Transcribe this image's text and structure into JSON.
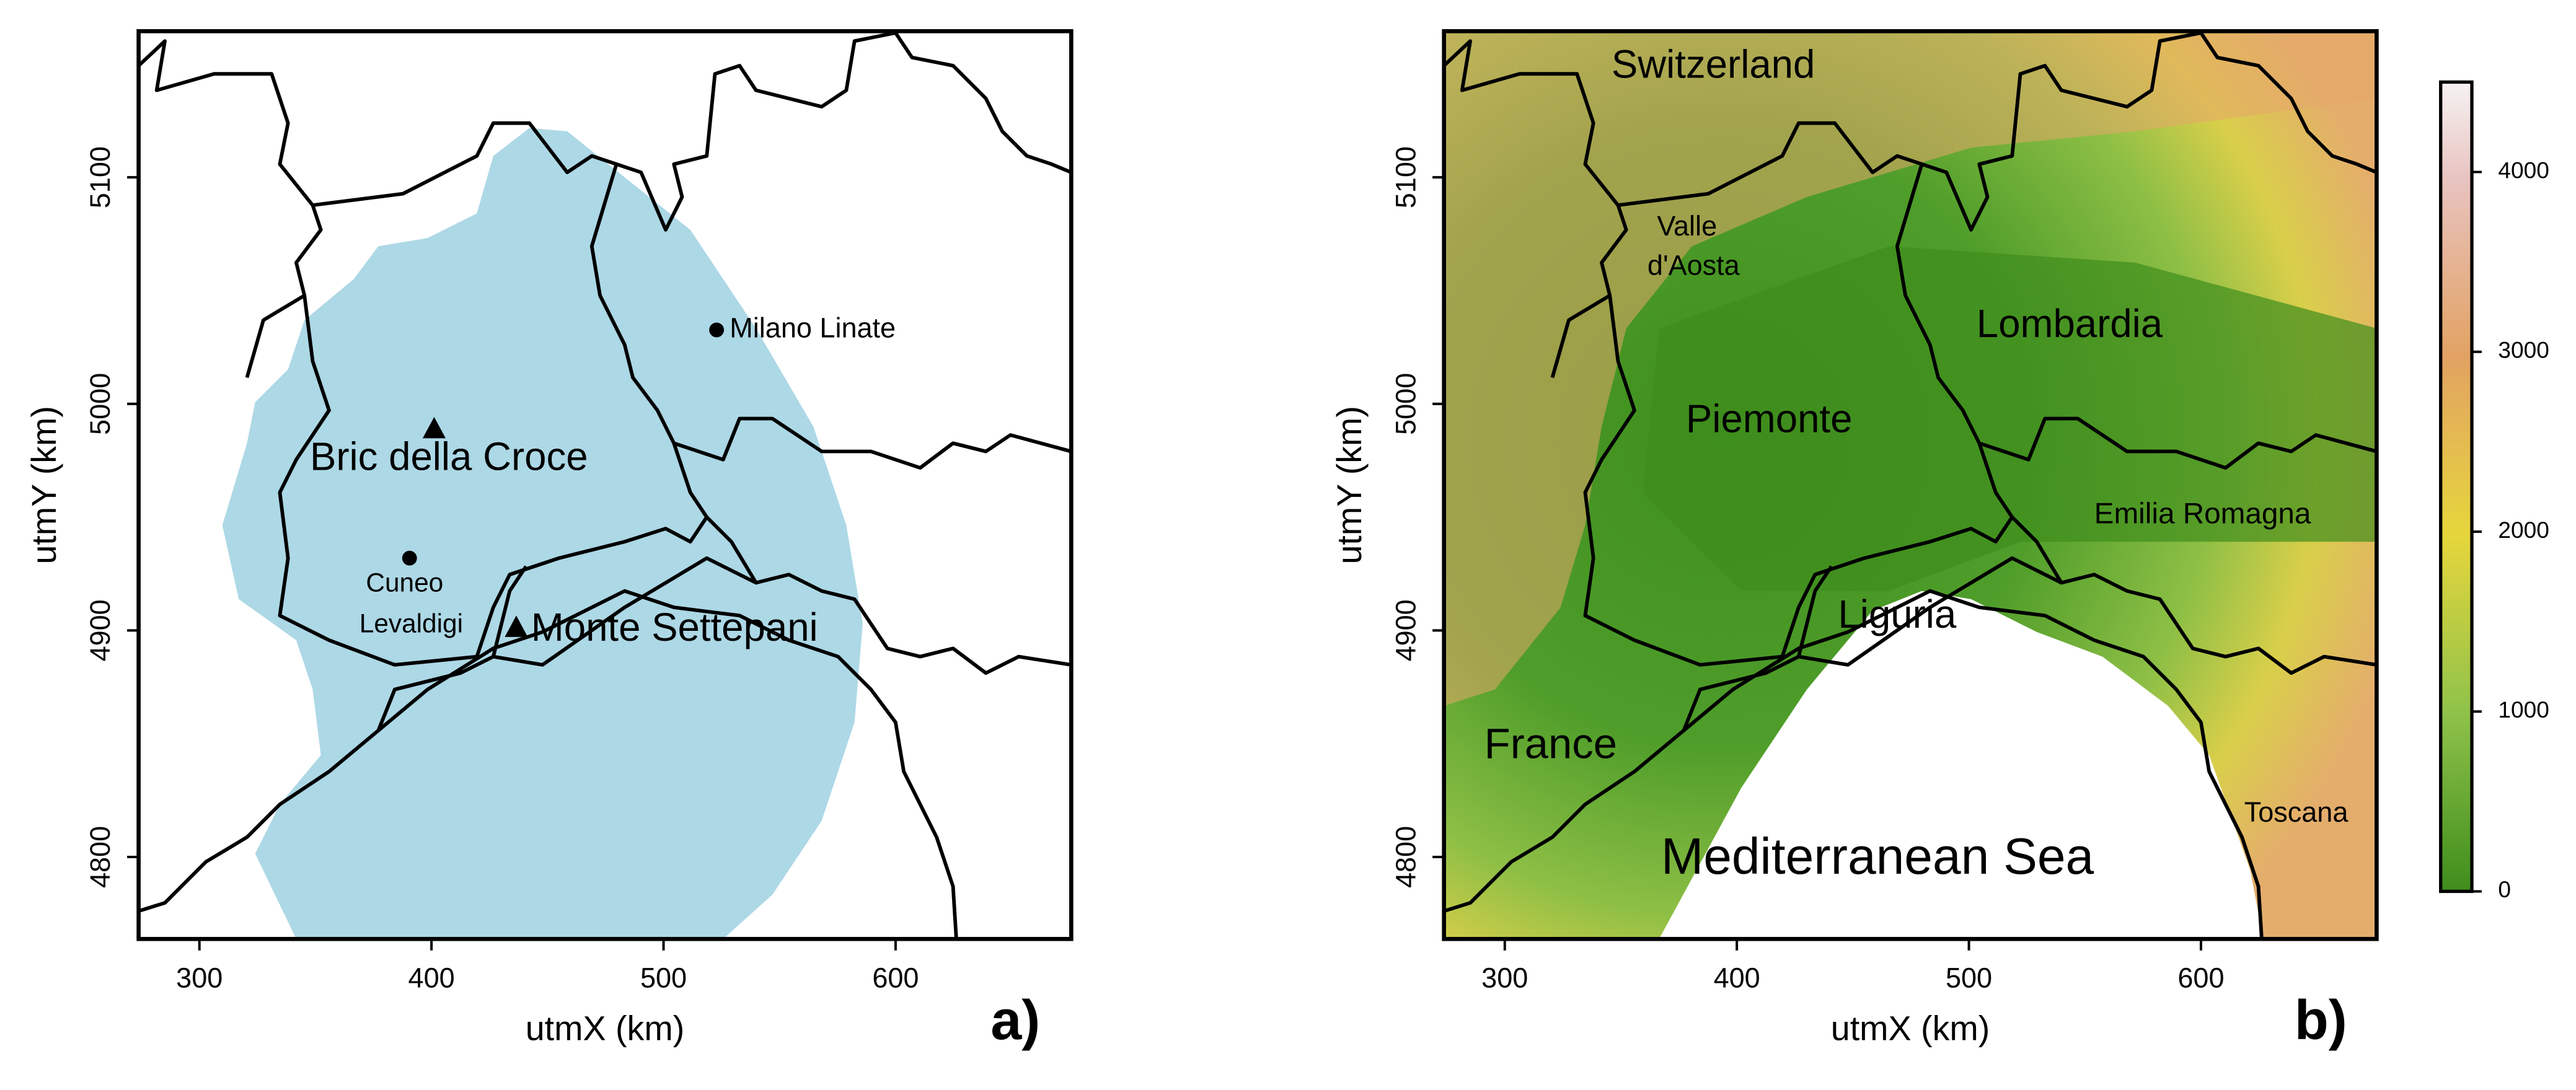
{
  "panels": [
    {
      "tag": "a)",
      "x_label": "utmX (km)",
      "y_label": "utmY (km)",
      "xlim": [
        273.8,
        675.7
      ],
      "ylim": [
        4763.8,
        5164.5
      ],
      "xticks": [
        300,
        400,
        500,
        600
      ],
      "yticks": [
        4800,
        4900,
        5000,
        5100
      ],
      "labels": [
        "Milano Linate",
        "Bric della Croce",
        "Cuneo",
        "Levaldigi",
        "Monte Settepani"
      ]
    },
    {
      "tag": "b)",
      "x_label": "utmX (km)",
      "y_label": "utmY (km)",
      "xlim": [
        273.8,
        675.7
      ],
      "ylim": [
        4763.8,
        5164.5
      ],
      "xticks": [
        300,
        400,
        500,
        600
      ],
      "yticks": [
        4800,
        4900,
        5000,
        5100
      ],
      "labels": [
        "Switzerland",
        "Valle",
        "d'Aosta",
        "Lombardia",
        "Piemonte",
        "Emilia Romagna",
        "Liguria",
        "France",
        "Toscana",
        "Mediterranean Sea"
      ]
    }
  ],
  "colorbar": {
    "lim": [
      0,
      4500
    ],
    "ticks": [
      0,
      1000,
      2000,
      3000,
      4000
    ]
  }
}
